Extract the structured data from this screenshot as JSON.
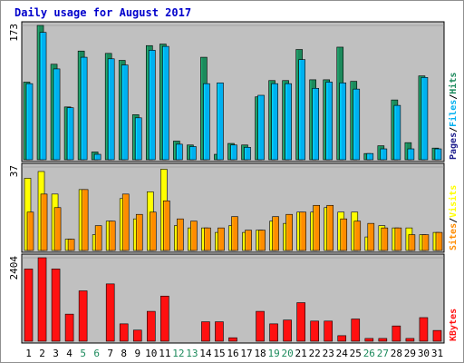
{
  "chart_data": {
    "type": "bar",
    "title": "Daily usage for August 2017",
    "categories": [
      "1",
      "2",
      "3",
      "4",
      "5",
      "6",
      "7",
      "8",
      "9",
      "10",
      "11",
      "12",
      "13",
      "14",
      "15",
      "16",
      "17",
      "18",
      "19",
      "20",
      "21",
      "22",
      "23",
      "24",
      "25",
      "26",
      "27",
      "28",
      "29",
      "30",
      "31"
    ],
    "weekend_days": [
      "5",
      "6",
      "12",
      "13",
      "19",
      "20",
      "26",
      "27"
    ],
    "panels": [
      {
        "name": "pages-files-hits",
        "max_label": "173",
        "ylim": [
          0,
          173
        ],
        "legend": [
          "Pages",
          "/",
          "Files",
          "/",
          "Hits"
        ],
        "series": [
          {
            "name": "Hits",
            "color": "#1c8a5c",
            "values": [
              100,
              173,
              123,
              68,
              140,
              10,
              137,
              128,
              58,
              147,
              149,
              24,
              19,
              132,
              7,
              21,
              19,
              81,
              102,
              102,
              142,
              103,
              103,
              145,
              101,
              8,
              18,
              77,
              22,
              108,
              15
            ]
          },
          {
            "name": "Files",
            "color": "#00b0f0",
            "values": [
              98,
              164,
              117,
              67,
              132,
              7,
              130,
              122,
              54,
              141,
              146,
              20,
              17,
              98,
              99,
              19,
              16,
              83,
              98,
              98,
              129,
              92,
              100,
              99,
              91,
              8,
              14,
              70,
              14,
              106,
              14
            ]
          },
          {
            "name": "Pages",
            "color": "#1c1c8c",
            "values": [
              0,
              0,
              0,
              0,
              0,
              0,
              0,
              0,
              0,
              0,
              0,
              0,
              0,
              0,
              0,
              0,
              0,
              0,
              0,
              0,
              0,
              0,
              0,
              0,
              0,
              0,
              0,
              0,
              0,
              0,
              0
            ]
          }
        ]
      },
      {
        "name": "sites-visits",
        "max_label": "37",
        "ylim": [
          0,
          37
        ],
        "legend": [
          "Sites",
          "/",
          "Visits"
        ],
        "series": [
          {
            "name": "Visits",
            "color": "#ffff00",
            "values": [
              32,
              35,
              25,
              5,
              27,
              7,
              13,
              23,
              14,
              26,
              36,
              11,
              10,
              10,
              8,
              11,
              8,
              9,
              13,
              12,
              17,
              17,
              19,
              17,
              17,
              6,
              11,
              10,
              10,
              7,
              8
            ]
          },
          {
            "name": "Sites",
            "color": "#ff8c00",
            "values": [
              17,
              25,
              19,
              5,
              27,
              11,
              13,
              25,
              16,
              17,
              22,
              14,
              13,
              10,
              10,
              15,
              9,
              9,
              15,
              16,
              17,
              20,
              20,
              14,
              13,
              12,
              10,
              10,
              7,
              7,
              8
            ]
          }
        ]
      },
      {
        "name": "kbytes",
        "max_label": "2404",
        "ylim": [
          0,
          2404
        ],
        "legend": [
          "KBytes"
        ],
        "series": [
          {
            "name": "KBytes",
            "color": "#ff1010",
            "values": [
              2080,
              2404,
              2080,
              780,
              1450,
              0,
              1650,
              500,
              320,
              860,
              1300,
              0,
              0,
              560,
              560,
              100,
              0,
              860,
              500,
              610,
              1110,
              580,
              580,
              160,
              640,
              80,
              80,
              440,
              80,
              680,
              310
            ]
          }
        ]
      }
    ]
  },
  "colors": {
    "title": "#0000cc",
    "weekday_label": "#000000",
    "weekend_label": "#1c8a5c",
    "plot_bg": "#c0c0c0",
    "outer_bg": "#ffffff",
    "border": "#000000"
  }
}
